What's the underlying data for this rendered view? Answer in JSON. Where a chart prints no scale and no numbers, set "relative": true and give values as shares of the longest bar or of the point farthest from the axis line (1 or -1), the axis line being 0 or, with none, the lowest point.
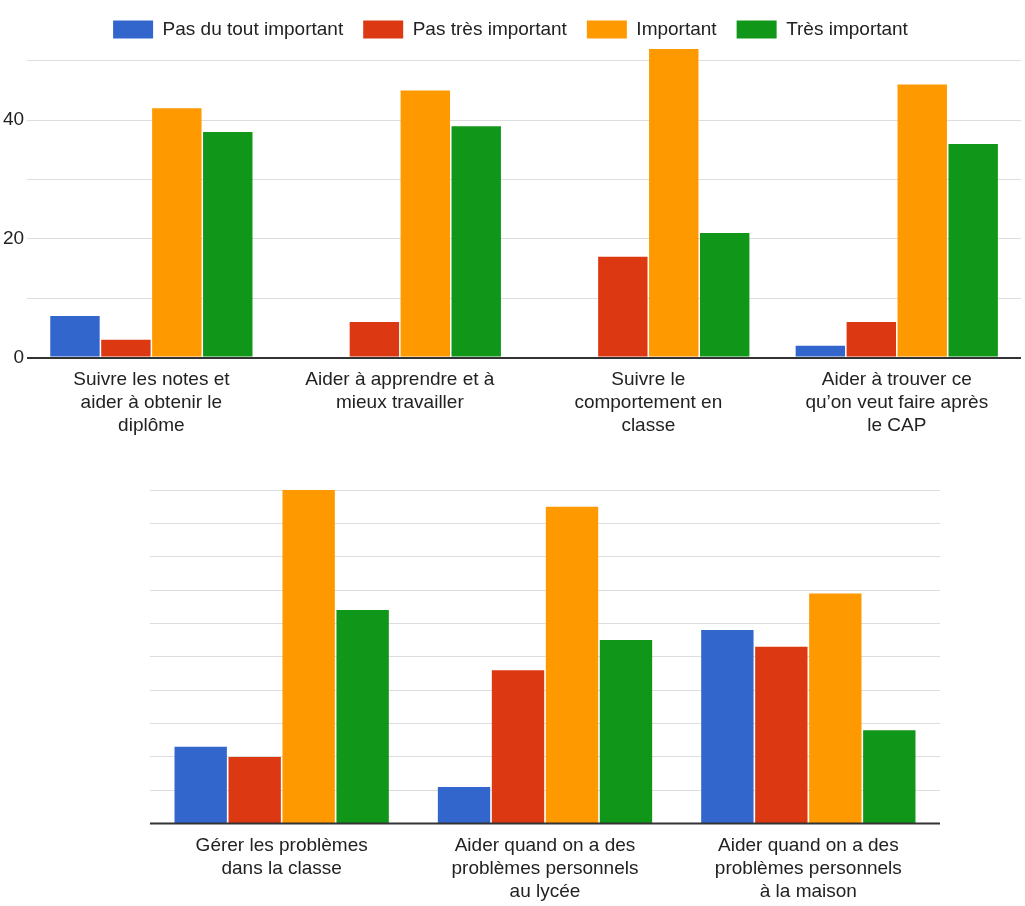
{
  "chart_data": [
    {
      "type": "bar",
      "categories": [
        "Suivre les notes et aider à obtenir le diplôme",
        "Aider à apprendre et à mieux travailler",
        "Suivre le comportement en classe",
        "Aider à trouver ce qu’on veut faire après le CAP"
      ],
      "series": [
        {
          "name": "Pas du tout important",
          "color": "#3366cc",
          "values": [
            7,
            0,
            0,
            2
          ]
        },
        {
          "name": "Pas très important",
          "color": "#dc3912",
          "values": [
            3,
            6,
            17,
            6
          ]
        },
        {
          "name": "Important",
          "color": "#ff9900",
          "values": [
            42,
            45,
            52,
            46
          ]
        },
        {
          "name": "Très important",
          "color": "#109618",
          "values": [
            38,
            39,
            21,
            36
          ]
        }
      ],
      "ylim": [
        0,
        52
      ],
      "yticks": [
        0,
        {
          "value": 10,
          "label": null
        },
        20,
        {
          "value": 30,
          "label": null
        },
        40,
        {
          "value": 50,
          "label": null
        }
      ],
      "grid": "y",
      "legend": "top"
    },
    {
      "type": "bar",
      "relative": true,
      "categories": [
        "Gérer les problèmes dans la classe",
        "Aider quand on a des problèmes personnels au lycée",
        "Aider quand on a des problèmes personnels à la maison"
      ],
      "series": [
        {
          "color": "#3366cc",
          "values": [
            0.23,
            0.11,
            0.58
          ]
        },
        {
          "color": "#dc3912",
          "values": [
            0.2,
            0.46,
            0.53
          ]
        },
        {
          "color": "#ff9900",
          "values": [
            1,
            0.95,
            0.69
          ]
        },
        {
          "color": "#109618",
          "values": [
            0.64,
            0.55,
            0.28
          ]
        }
      ],
      "grid": "y",
      "legend": false
    }
  ]
}
